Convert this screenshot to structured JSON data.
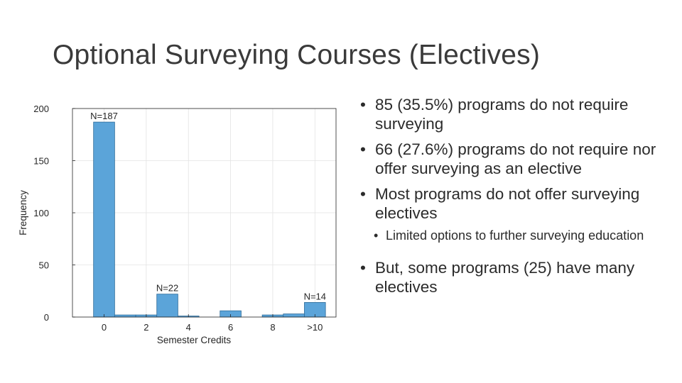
{
  "slide": {
    "title": "Optional Surveying Courses (Electives)"
  },
  "bullets": [
    {
      "text": "85 (35.5%) programs do not require surveying"
    },
    {
      "text": "66 (27.6%) programs do not require nor offer surveying as an elective"
    },
    {
      "text": "Most programs do not offer surveying electives"
    },
    {
      "text": "Limited options to further surveying education",
      "level": 2
    },
    {
      "text": "But, some programs (25) have many electives"
    }
  ],
  "bullet_glyph": "•",
  "colors": {
    "bar_fill": "#5ba4d9",
    "bar_stroke": "#2c6b99",
    "text": "#2b2b2b",
    "title": "#3a3a3a"
  },
  "chart_data": {
    "type": "bar",
    "xlabel": "Semester Credits",
    "ylabel": "Frequency",
    "ylim": [
      0,
      200
    ],
    "yticks": [
      0,
      50,
      100,
      150,
      200
    ],
    "xticks": [
      {
        "value": 0,
        "label": "0"
      },
      {
        "value": 2,
        "label": "2"
      },
      {
        "value": 4,
        "label": "4"
      },
      {
        "value": 6,
        "label": "6"
      },
      {
        "value": 8,
        "label": "8"
      },
      {
        "value": 10,
        "label": ">10"
      }
    ],
    "xlim": [
      -1.5,
      11
    ],
    "grid": true,
    "bins": [
      {
        "x0": -0.5,
        "x1": 0.5,
        "value": 187,
        "label": "N=187"
      },
      {
        "x0": 0.5,
        "x1": 1.5,
        "value": 2
      },
      {
        "x0": 1.5,
        "x1": 2.5,
        "value": 2
      },
      {
        "x0": 2.5,
        "x1": 3.5,
        "value": 22,
        "label": "N=22"
      },
      {
        "x0": 3.5,
        "x1": 4.5,
        "value": 1
      },
      {
        "x0": 5.5,
        "x1": 6.5,
        "value": 6
      },
      {
        "x0": 7.5,
        "x1": 8.5,
        "value": 2
      },
      {
        "x0": 8.5,
        "x1": 9.5,
        "value": 3
      },
      {
        "x0": 9.5,
        "x1": 10.5,
        "value": 14,
        "label": "N=14"
      }
    ]
  }
}
